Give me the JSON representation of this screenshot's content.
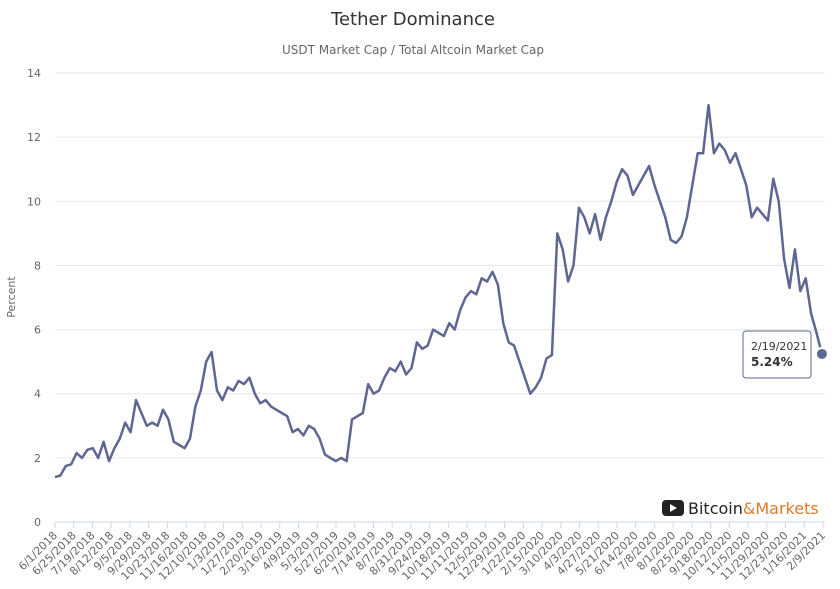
{
  "chart_data": {
    "type": "line",
    "title": "Tether Dominance",
    "subtitle": "USDT Market Cap / Total Altcoin Market Cap",
    "ylabel": "Percent",
    "ylim": [
      0,
      14
    ],
    "yticks": [
      "0",
      "2",
      "4",
      "6",
      "8",
      "10",
      "12",
      "14"
    ],
    "grid": true,
    "x_tick_labels": [
      "6/1/2018",
      "6/25/2018",
      "7/19/2018",
      "8/12/2018",
      "9/5/2018",
      "9/29/2018",
      "10/23/2018",
      "11/16/2018",
      "12/10/2018",
      "1/3/2019",
      "1/27/2019",
      "2/20/2019",
      "3/16/2019",
      "4/9/2019",
      "5/3/2019",
      "5/27/2019",
      "6/20/2019",
      "7/14/2019",
      "8/7/2019",
      "8/31/2019",
      "9/24/2019",
      "10/18/2019",
      "11/11/2019",
      "12/5/2019",
      "12/29/2019",
      "1/22/2020",
      "2/15/2020",
      "3/10/2020",
      "4/3/2020",
      "4/27/2020",
      "5/21/2020",
      "6/14/2020",
      "7/8/2020",
      "8/1/2020",
      "8/25/2020",
      "9/18/2020",
      "10/12/2020",
      "11/5/2020",
      "11/29/2020",
      "12/23/2020",
      "1/16/2021",
      "2/9/2021"
    ],
    "series": [
      {
        "color": "#5f6691",
        "points": [
          [
            "2018-06-01",
            1.4
          ],
          [
            "2018-06-08",
            1.45
          ],
          [
            "2018-06-15",
            1.75
          ],
          [
            "2018-06-22",
            1.8
          ],
          [
            "2018-06-29",
            2.15
          ],
          [
            "2018-07-06",
            2.0
          ],
          [
            "2018-07-13",
            2.25
          ],
          [
            "2018-07-20",
            2.3
          ],
          [
            "2018-07-27",
            2.0
          ],
          [
            "2018-08-03",
            2.5
          ],
          [
            "2018-08-10",
            1.9
          ],
          [
            "2018-08-17",
            2.3
          ],
          [
            "2018-08-24",
            2.6
          ],
          [
            "2018-08-31",
            3.1
          ],
          [
            "2018-09-07",
            2.8
          ],
          [
            "2018-09-14",
            3.8
          ],
          [
            "2018-09-21",
            3.4
          ],
          [
            "2018-09-28",
            3.0
          ],
          [
            "2018-10-05",
            3.1
          ],
          [
            "2018-10-12",
            3.0
          ],
          [
            "2018-10-19",
            3.5
          ],
          [
            "2018-10-26",
            3.2
          ],
          [
            "2018-11-02",
            2.5
          ],
          [
            "2018-11-09",
            2.4
          ],
          [
            "2018-11-16",
            2.3
          ],
          [
            "2018-11-23",
            2.6
          ],
          [
            "2018-11-30",
            3.6
          ],
          [
            "2018-12-07",
            4.1
          ],
          [
            "2018-12-14",
            5.0
          ],
          [
            "2018-12-21",
            5.3
          ],
          [
            "2018-12-28",
            4.1
          ],
          [
            "2019-01-04",
            3.8
          ],
          [
            "2019-01-11",
            4.2
          ],
          [
            "2019-01-18",
            4.1
          ],
          [
            "2019-01-25",
            4.4
          ],
          [
            "2019-02-01",
            4.3
          ],
          [
            "2019-02-08",
            4.5
          ],
          [
            "2019-02-15",
            4.0
          ],
          [
            "2019-02-22",
            3.7
          ],
          [
            "2019-03-01",
            3.8
          ],
          [
            "2019-03-08",
            3.6
          ],
          [
            "2019-03-15",
            3.5
          ],
          [
            "2019-03-22",
            3.4
          ],
          [
            "2019-03-29",
            3.3
          ],
          [
            "2019-04-05",
            2.8
          ],
          [
            "2019-04-12",
            2.9
          ],
          [
            "2019-04-19",
            2.7
          ],
          [
            "2019-04-26",
            3.0
          ],
          [
            "2019-05-03",
            2.9
          ],
          [
            "2019-05-10",
            2.6
          ],
          [
            "2019-05-17",
            2.1
          ],
          [
            "2019-05-24",
            2.0
          ],
          [
            "2019-05-31",
            1.9
          ],
          [
            "2019-06-07",
            2.0
          ],
          [
            "2019-06-14",
            1.9
          ],
          [
            "2019-06-21",
            3.2
          ],
          [
            "2019-06-28",
            3.3
          ],
          [
            "2019-07-05",
            3.4
          ],
          [
            "2019-07-12",
            4.3
          ],
          [
            "2019-07-19",
            4.0
          ],
          [
            "2019-07-26",
            4.1
          ],
          [
            "2019-08-02",
            4.5
          ],
          [
            "2019-08-09",
            4.8
          ],
          [
            "2019-08-16",
            4.7
          ],
          [
            "2019-08-23",
            5.0
          ],
          [
            "2019-08-30",
            4.6
          ],
          [
            "2019-09-06",
            4.8
          ],
          [
            "2019-09-13",
            5.6
          ],
          [
            "2019-09-20",
            5.4
          ],
          [
            "2019-09-27",
            5.5
          ],
          [
            "2019-10-04",
            6.0
          ],
          [
            "2019-10-11",
            5.9
          ],
          [
            "2019-10-18",
            5.8
          ],
          [
            "2019-10-25",
            6.2
          ],
          [
            "2019-11-01",
            6.0
          ],
          [
            "2019-11-08",
            6.6
          ],
          [
            "2019-11-15",
            7.0
          ],
          [
            "2019-11-22",
            7.2
          ],
          [
            "2019-11-29",
            7.1
          ],
          [
            "2019-12-06",
            7.6
          ],
          [
            "2019-12-13",
            7.5
          ],
          [
            "2019-12-20",
            7.8
          ],
          [
            "2019-12-27",
            7.4
          ],
          [
            "2020-01-03",
            6.2
          ],
          [
            "2020-01-10",
            5.6
          ],
          [
            "2020-01-17",
            5.5
          ],
          [
            "2020-01-24",
            5.0
          ],
          [
            "2020-01-31",
            4.5
          ],
          [
            "2020-02-07",
            4.0
          ],
          [
            "2020-02-14",
            4.2
          ],
          [
            "2020-02-21",
            4.5
          ],
          [
            "2020-02-28",
            5.1
          ],
          [
            "2020-03-06",
            5.2
          ],
          [
            "2020-03-13",
            9.0
          ],
          [
            "2020-03-20",
            8.5
          ],
          [
            "2020-03-27",
            7.5
          ],
          [
            "2020-04-03",
            8.0
          ],
          [
            "2020-04-10",
            9.8
          ],
          [
            "2020-04-17",
            9.5
          ],
          [
            "2020-04-24",
            9.0
          ],
          [
            "2020-05-01",
            9.6
          ],
          [
            "2020-05-08",
            8.8
          ],
          [
            "2020-05-15",
            9.5
          ],
          [
            "2020-05-22",
            10.0
          ],
          [
            "2020-05-29",
            10.6
          ],
          [
            "2020-06-05",
            11.0
          ],
          [
            "2020-06-12",
            10.8
          ],
          [
            "2020-06-19",
            10.2
          ],
          [
            "2020-06-26",
            10.5
          ],
          [
            "2020-07-03",
            10.8
          ],
          [
            "2020-07-10",
            11.1
          ],
          [
            "2020-07-17",
            10.5
          ],
          [
            "2020-07-24",
            10.0
          ],
          [
            "2020-07-31",
            9.5
          ],
          [
            "2020-08-07",
            8.8
          ],
          [
            "2020-08-14",
            8.7
          ],
          [
            "2020-08-21",
            8.9
          ],
          [
            "2020-08-28",
            9.5
          ],
          [
            "2020-09-04",
            10.5
          ],
          [
            "2020-09-11",
            11.5
          ],
          [
            "2020-09-18",
            11.5
          ],
          [
            "2020-09-25",
            13.0
          ],
          [
            "2020-10-02",
            11.5
          ],
          [
            "2020-10-09",
            11.8
          ],
          [
            "2020-10-16",
            11.6
          ],
          [
            "2020-10-23",
            11.2
          ],
          [
            "2020-10-30",
            11.5
          ],
          [
            "2020-11-06",
            11.0
          ],
          [
            "2020-11-13",
            10.5
          ],
          [
            "2020-11-20",
            9.5
          ],
          [
            "2020-11-27",
            9.8
          ],
          [
            "2020-12-04",
            9.6
          ],
          [
            "2020-12-11",
            9.4
          ],
          [
            "2020-12-18",
            10.7
          ],
          [
            "2020-12-25",
            10.0
          ],
          [
            "2021-01-01",
            8.2
          ],
          [
            "2021-01-08",
            7.3
          ],
          [
            "2021-01-15",
            8.5
          ],
          [
            "2021-01-22",
            7.2
          ],
          [
            "2021-01-29",
            7.6
          ],
          [
            "2021-02-05",
            6.5
          ],
          [
            "2021-02-12",
            5.9
          ],
          [
            "2021-02-19",
            5.24
          ]
        ]
      }
    ],
    "tooltip": {
      "date": "2/19/2021",
      "value": "5.24%"
    }
  },
  "brand": {
    "part1": "Bitcoin",
    "amp": "&",
    "part2": "Markets",
    "icon": "play-icon"
  }
}
